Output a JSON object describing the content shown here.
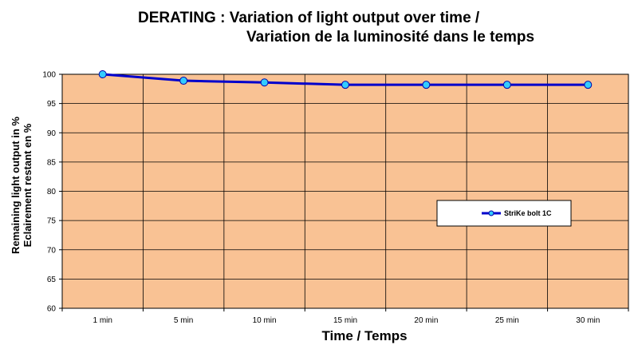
{
  "chart_data": {
    "type": "line",
    "title_line1": "DERATING : Variation of light output over time /",
    "title_line2": "Variation de la luminosité dans le temps",
    "ylabel_line1": "Remaining light output in %",
    "ylabel_line2": "Eclairement restant en %",
    "xlabel": "Time / Temps",
    "categories": [
      "1 min",
      "5 min",
      "10 min",
      "15 min",
      "20 min",
      "25 min",
      "30 min"
    ],
    "yticks": [
      60,
      65,
      70,
      75,
      80,
      85,
      90,
      95,
      100
    ],
    "ylim": [
      60,
      100
    ],
    "grid": true,
    "legend_position": "right",
    "series": [
      {
        "name": "StriKe bolt 1C",
        "values": [
          100,
          98.9,
          98.6,
          98.2,
          98.2,
          98.2,
          98.2
        ],
        "color": "#0000cc",
        "marker_color": "#33ccff"
      }
    ],
    "plot_background": "#f9c294"
  }
}
